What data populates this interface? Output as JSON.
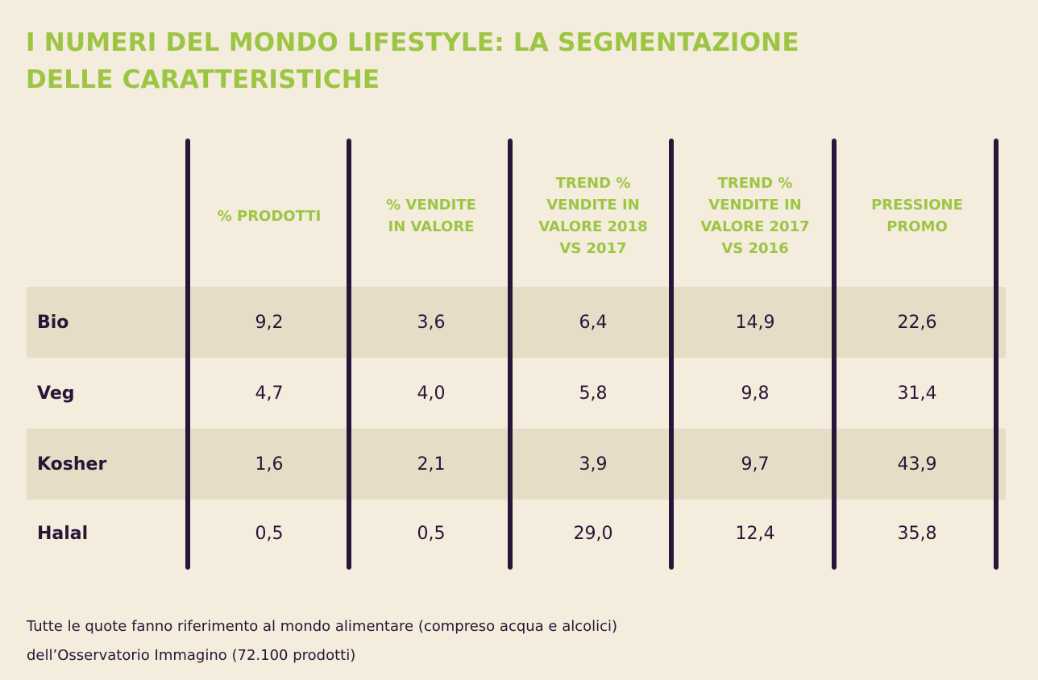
{
  "title": {
    "line1": "I NUMERI DEL MONDO LIFESTYLE: LA SEGMENTAZIONE",
    "line2": "DELLE CARATTERISTICHE"
  },
  "footnote": {
    "line1": "Tutte le quote fanno riferimento al mondo alimentare (compreso acqua e alcolici)",
    "line2": "dell’Osservatorio Immagino (72.100 prodotti)"
  },
  "colors": {
    "title_green": "#9dc544",
    "text_purple": "#2a1538",
    "band": "#e6ddc6",
    "background": "#f4ecdc"
  },
  "chart_data": {
    "type": "table",
    "title": "I NUMERI DEL MONDO LIFESTYLE: LA SEGMENTAZIONE DELLE CARATTERISTICHE",
    "columns": [
      [
        "% PRODOTTI"
      ],
      [
        "% VENDITE",
        "IN VALORE"
      ],
      [
        "TREND %",
        "VENDITE IN",
        "VALORE 2018",
        "VS 2017"
      ],
      [
        "TREND %",
        "VENDITE IN",
        "VALORE 2017",
        "VS 2016"
      ],
      [
        "PRESSIONE",
        "PROMO"
      ]
    ],
    "rows": [
      {
        "label": "Bio",
        "values": [
          "9,2",
          "3,6",
          "6,4",
          "14,9",
          "22,6"
        ]
      },
      {
        "label": "Veg",
        "values": [
          "4,7",
          "4,0",
          "5,8",
          "9,8",
          "31,4"
        ]
      },
      {
        "label": "Kosher",
        "values": [
          "1,6",
          "2,1",
          "3,9",
          "9,7",
          "43,9"
        ]
      },
      {
        "label": "Halal",
        "values": [
          "0,5",
          "0,5",
          "29,0",
          "12,4",
          "35,8"
        ]
      }
    ]
  }
}
